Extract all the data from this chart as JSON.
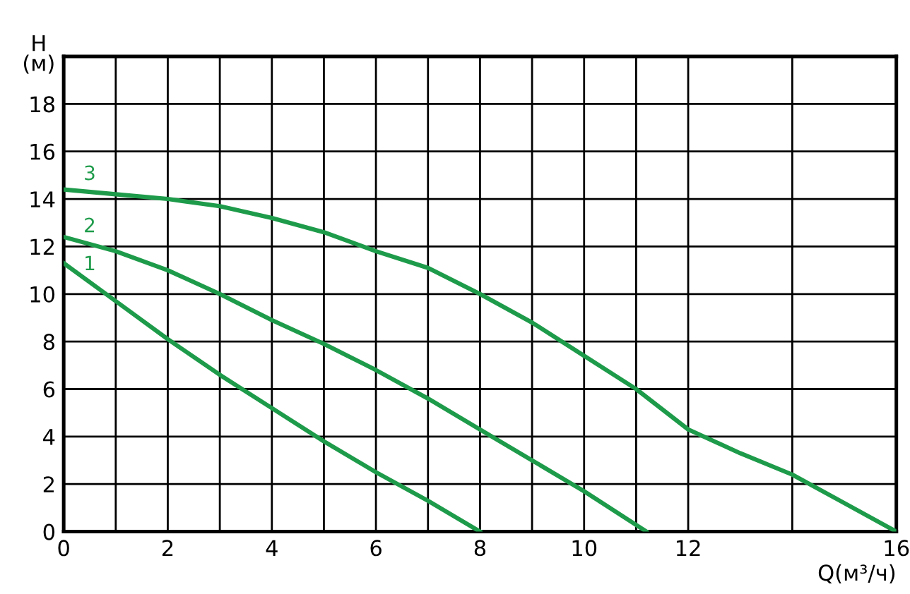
{
  "chart_data": {
    "type": "line",
    "xlabel": "Q(м³/ч)",
    "ylabel": "H\n(м)",
    "xlim": [
      0,
      16
    ],
    "ylim": [
      0,
      20
    ],
    "xticks": [
      0,
      {
        "value": 1,
        "label": null
      },
      2,
      {
        "value": 3,
        "label": null
      },
      4,
      {
        "value": 5,
        "label": null
      },
      6,
      {
        "value": 7,
        "label": null
      },
      8,
      {
        "value": 9,
        "label": null
      },
      10,
      {
        "value": 11,
        "label": null
      },
      12,
      {
        "value": 14,
        "label": null
      },
      16
    ],
    "yticks": [
      0,
      2,
      4,
      6,
      8,
      10,
      12,
      14,
      16,
      18,
      {
        "value": 20,
        "label": null
      }
    ],
    "grid": true,
    "marker": "none",
    "line_style": "solid",
    "series": [
      {
        "name": "1",
        "color": "#1e9b4a",
        "x": [
          0,
          1,
          2,
          3,
          4,
          5,
          6,
          7,
          8
        ],
        "values": [
          11.3,
          9.7,
          8.1,
          6.6,
          5.2,
          3.8,
          2.5,
          1.3,
          0
        ]
      },
      {
        "name": "2",
        "color": "#1e9b4a",
        "x": [
          0,
          1,
          2,
          3,
          4,
          5,
          6,
          7,
          8,
          9,
          10,
          11.2
        ],
        "values": [
          12.4,
          11.8,
          11.0,
          10.0,
          8.9,
          7.9,
          6.8,
          5.6,
          4.3,
          3.0,
          1.7,
          0
        ]
      },
      {
        "name": "3",
        "color": "#1e9b4a",
        "x": [
          0,
          1,
          2,
          3,
          4,
          5,
          6,
          7,
          8,
          9,
          10,
          11,
          12,
          13,
          14,
          15,
          16
        ],
        "values": [
          14.4,
          14.2,
          14.0,
          13.7,
          13.2,
          12.6,
          11.8,
          11.1,
          10.0,
          8.8,
          7.4,
          6.0,
          4.3,
          3.3,
          2.4,
          1.2,
          0
        ]
      }
    ]
  }
}
